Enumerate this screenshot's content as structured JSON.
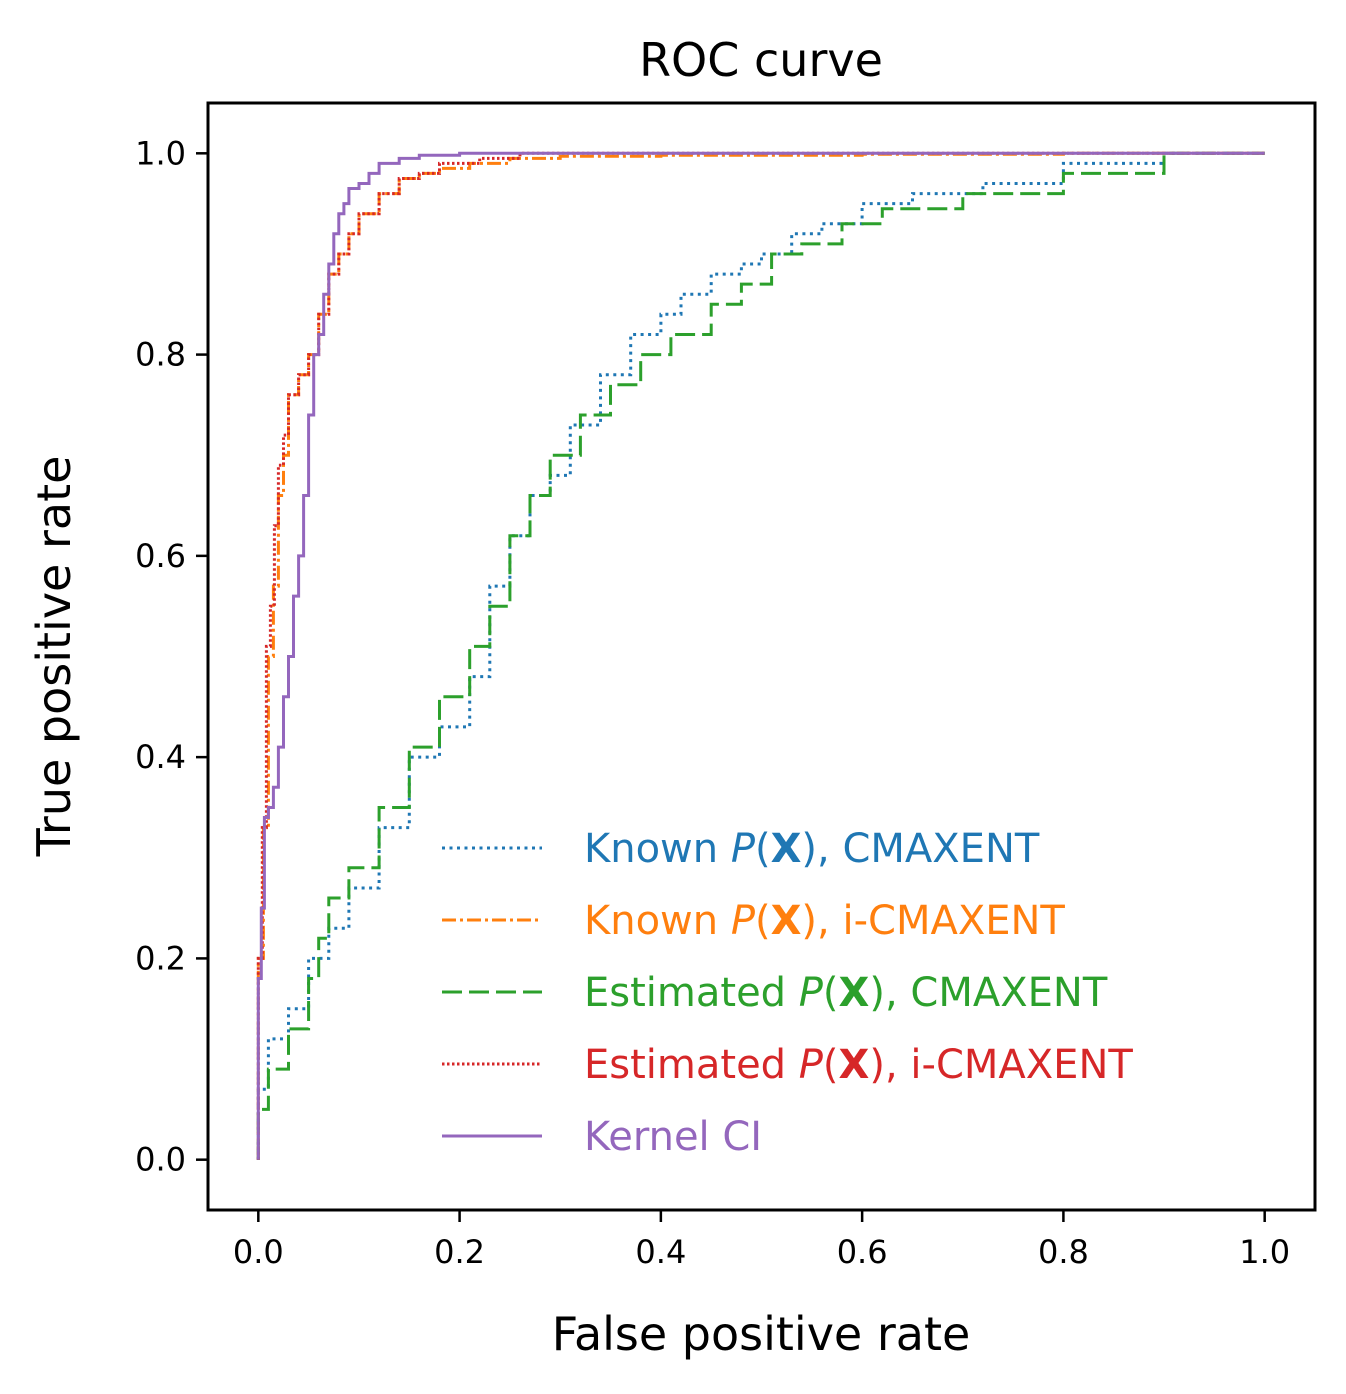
{
  "chart_data": {
    "type": "line",
    "title": "ROC curve",
    "xlabel": "False positive rate",
    "ylabel": "True positive rate",
    "xlim": [
      -0.05,
      1.05
    ],
    "ylim": [
      -0.05,
      1.05
    ],
    "xticks": [
      0.0,
      0.2,
      0.4,
      0.6,
      0.8,
      1.0
    ],
    "yticks": [
      0.0,
      0.2,
      0.4,
      0.6,
      0.8,
      1.0
    ],
    "xtick_labels": [
      "0.0",
      "0.2",
      "0.4",
      "0.6",
      "0.8",
      "1.0"
    ],
    "ytick_labels": [
      "0.0",
      "0.2",
      "0.4",
      "0.6",
      "0.8",
      "1.0"
    ],
    "grid": false,
    "legend_position": "lower-right",
    "series": [
      {
        "name": "Known P(X), CMAXENT",
        "legend": {
          "pre": "Known ",
          "P": "P",
          "X": "X",
          "post": ", CMAXENT"
        },
        "color": "#1f77b4",
        "style": "dotted",
        "x": [
          0,
          0.01,
          0.03,
          0.05,
          0.07,
          0.09,
          0.12,
          0.15,
          0.18,
          0.21,
          0.23,
          0.25,
          0.27,
          0.29,
          0.31,
          0.34,
          0.37,
          0.4,
          0.42,
          0.45,
          0.48,
          0.5,
          0.53,
          0.56,
          0.6,
          0.65,
          0.72,
          0.8,
          0.9,
          1.0
        ],
        "y": [
          0,
          0.07,
          0.12,
          0.15,
          0.2,
          0.23,
          0.27,
          0.33,
          0.4,
          0.43,
          0.48,
          0.57,
          0.62,
          0.66,
          0.68,
          0.73,
          0.78,
          0.82,
          0.84,
          0.86,
          0.88,
          0.89,
          0.9,
          0.92,
          0.93,
          0.95,
          0.96,
          0.97,
          0.99,
          1.0
        ]
      },
      {
        "name": "Known P(X), i-CMAXENT",
        "legend": {
          "pre": "Known ",
          "P": "P",
          "X": "X",
          "post": ", i-CMAXENT"
        },
        "color": "#ff7f0e",
        "style": "dashdot",
        "x": [
          0,
          0.005,
          0.01,
          0.015,
          0.02,
          0.025,
          0.03,
          0.04,
          0.05,
          0.06,
          0.07,
          0.08,
          0.09,
          0.1,
          0.12,
          0.14,
          0.16,
          0.18,
          0.21,
          0.25,
          0.3,
          0.4,
          0.6,
          0.8,
          1.0
        ],
        "y": [
          0,
          0.2,
          0.33,
          0.5,
          0.57,
          0.66,
          0.7,
          0.76,
          0.78,
          0.8,
          0.84,
          0.88,
          0.9,
          0.92,
          0.94,
          0.96,
          0.975,
          0.98,
          0.985,
          0.99,
          0.995,
          0.997,
          0.998,
          0.999,
          1.0
        ]
      },
      {
        "name": "Estimated P(X), CMAXENT",
        "legend": {
          "pre": "Estimated ",
          "P": "P",
          "X": "X",
          "post": ", CMAXENT"
        },
        "color": "#2ca02c",
        "style": "dashed",
        "x": [
          0,
          0.01,
          0.03,
          0.05,
          0.06,
          0.07,
          0.09,
          0.12,
          0.15,
          0.18,
          0.21,
          0.23,
          0.25,
          0.27,
          0.29,
          0.32,
          0.35,
          0.38,
          0.41,
          0.45,
          0.48,
          0.51,
          0.54,
          0.58,
          0.62,
          0.7,
          0.8,
          0.9,
          1.0
        ],
        "y": [
          0,
          0.05,
          0.09,
          0.13,
          0.18,
          0.22,
          0.26,
          0.29,
          0.35,
          0.41,
          0.46,
          0.51,
          0.55,
          0.62,
          0.66,
          0.7,
          0.74,
          0.77,
          0.8,
          0.82,
          0.85,
          0.87,
          0.9,
          0.91,
          0.93,
          0.945,
          0.96,
          0.98,
          1.0
        ]
      },
      {
        "name": "Estimated P(X), i-CMAXENT",
        "legend": {
          "pre": "Estimated ",
          "P": "P",
          "X": "X",
          "post": ", i-CMAXENT"
        },
        "color": "#d62728",
        "style": "densely-dotted",
        "x": [
          0,
          0.004,
          0.008,
          0.012,
          0.016,
          0.02,
          0.025,
          0.03,
          0.04,
          0.05,
          0.06,
          0.07,
          0.08,
          0.09,
          0.1,
          0.12,
          0.14,
          0.16,
          0.18,
          0.22,
          0.26,
          0.32,
          0.5,
          0.7,
          1.0
        ],
        "y": [
          0,
          0.2,
          0.33,
          0.51,
          0.55,
          0.63,
          0.69,
          0.72,
          0.76,
          0.78,
          0.8,
          0.84,
          0.88,
          0.9,
          0.92,
          0.94,
          0.96,
          0.975,
          0.98,
          0.99,
          0.995,
          1.0,
          1.0,
          1.0,
          1.0
        ]
      },
      {
        "name": "Kernel CI",
        "legend": {
          "pre": "Kernel CI",
          "P": "",
          "X": "",
          "post": ""
        },
        "color": "#9467bd",
        "style": "solid",
        "x": [
          0,
          0.003,
          0.006,
          0.01,
          0.015,
          0.02,
          0.025,
          0.03,
          0.035,
          0.04,
          0.045,
          0.05,
          0.055,
          0.06,
          0.065,
          0.07,
          0.075,
          0.08,
          0.085,
          0.09,
          0.1,
          0.11,
          0.12,
          0.14,
          0.16,
          0.2,
          0.3,
          0.5,
          0.8,
          1.0
        ],
        "y": [
          0,
          0.18,
          0.25,
          0.34,
          0.35,
          0.37,
          0.41,
          0.46,
          0.5,
          0.56,
          0.6,
          0.66,
          0.74,
          0.8,
          0.82,
          0.86,
          0.89,
          0.92,
          0.94,
          0.95,
          0.965,
          0.97,
          0.98,
          0.99,
          0.995,
          0.998,
          1.0,
          1.0,
          1.0,
          1.0
        ]
      }
    ]
  }
}
